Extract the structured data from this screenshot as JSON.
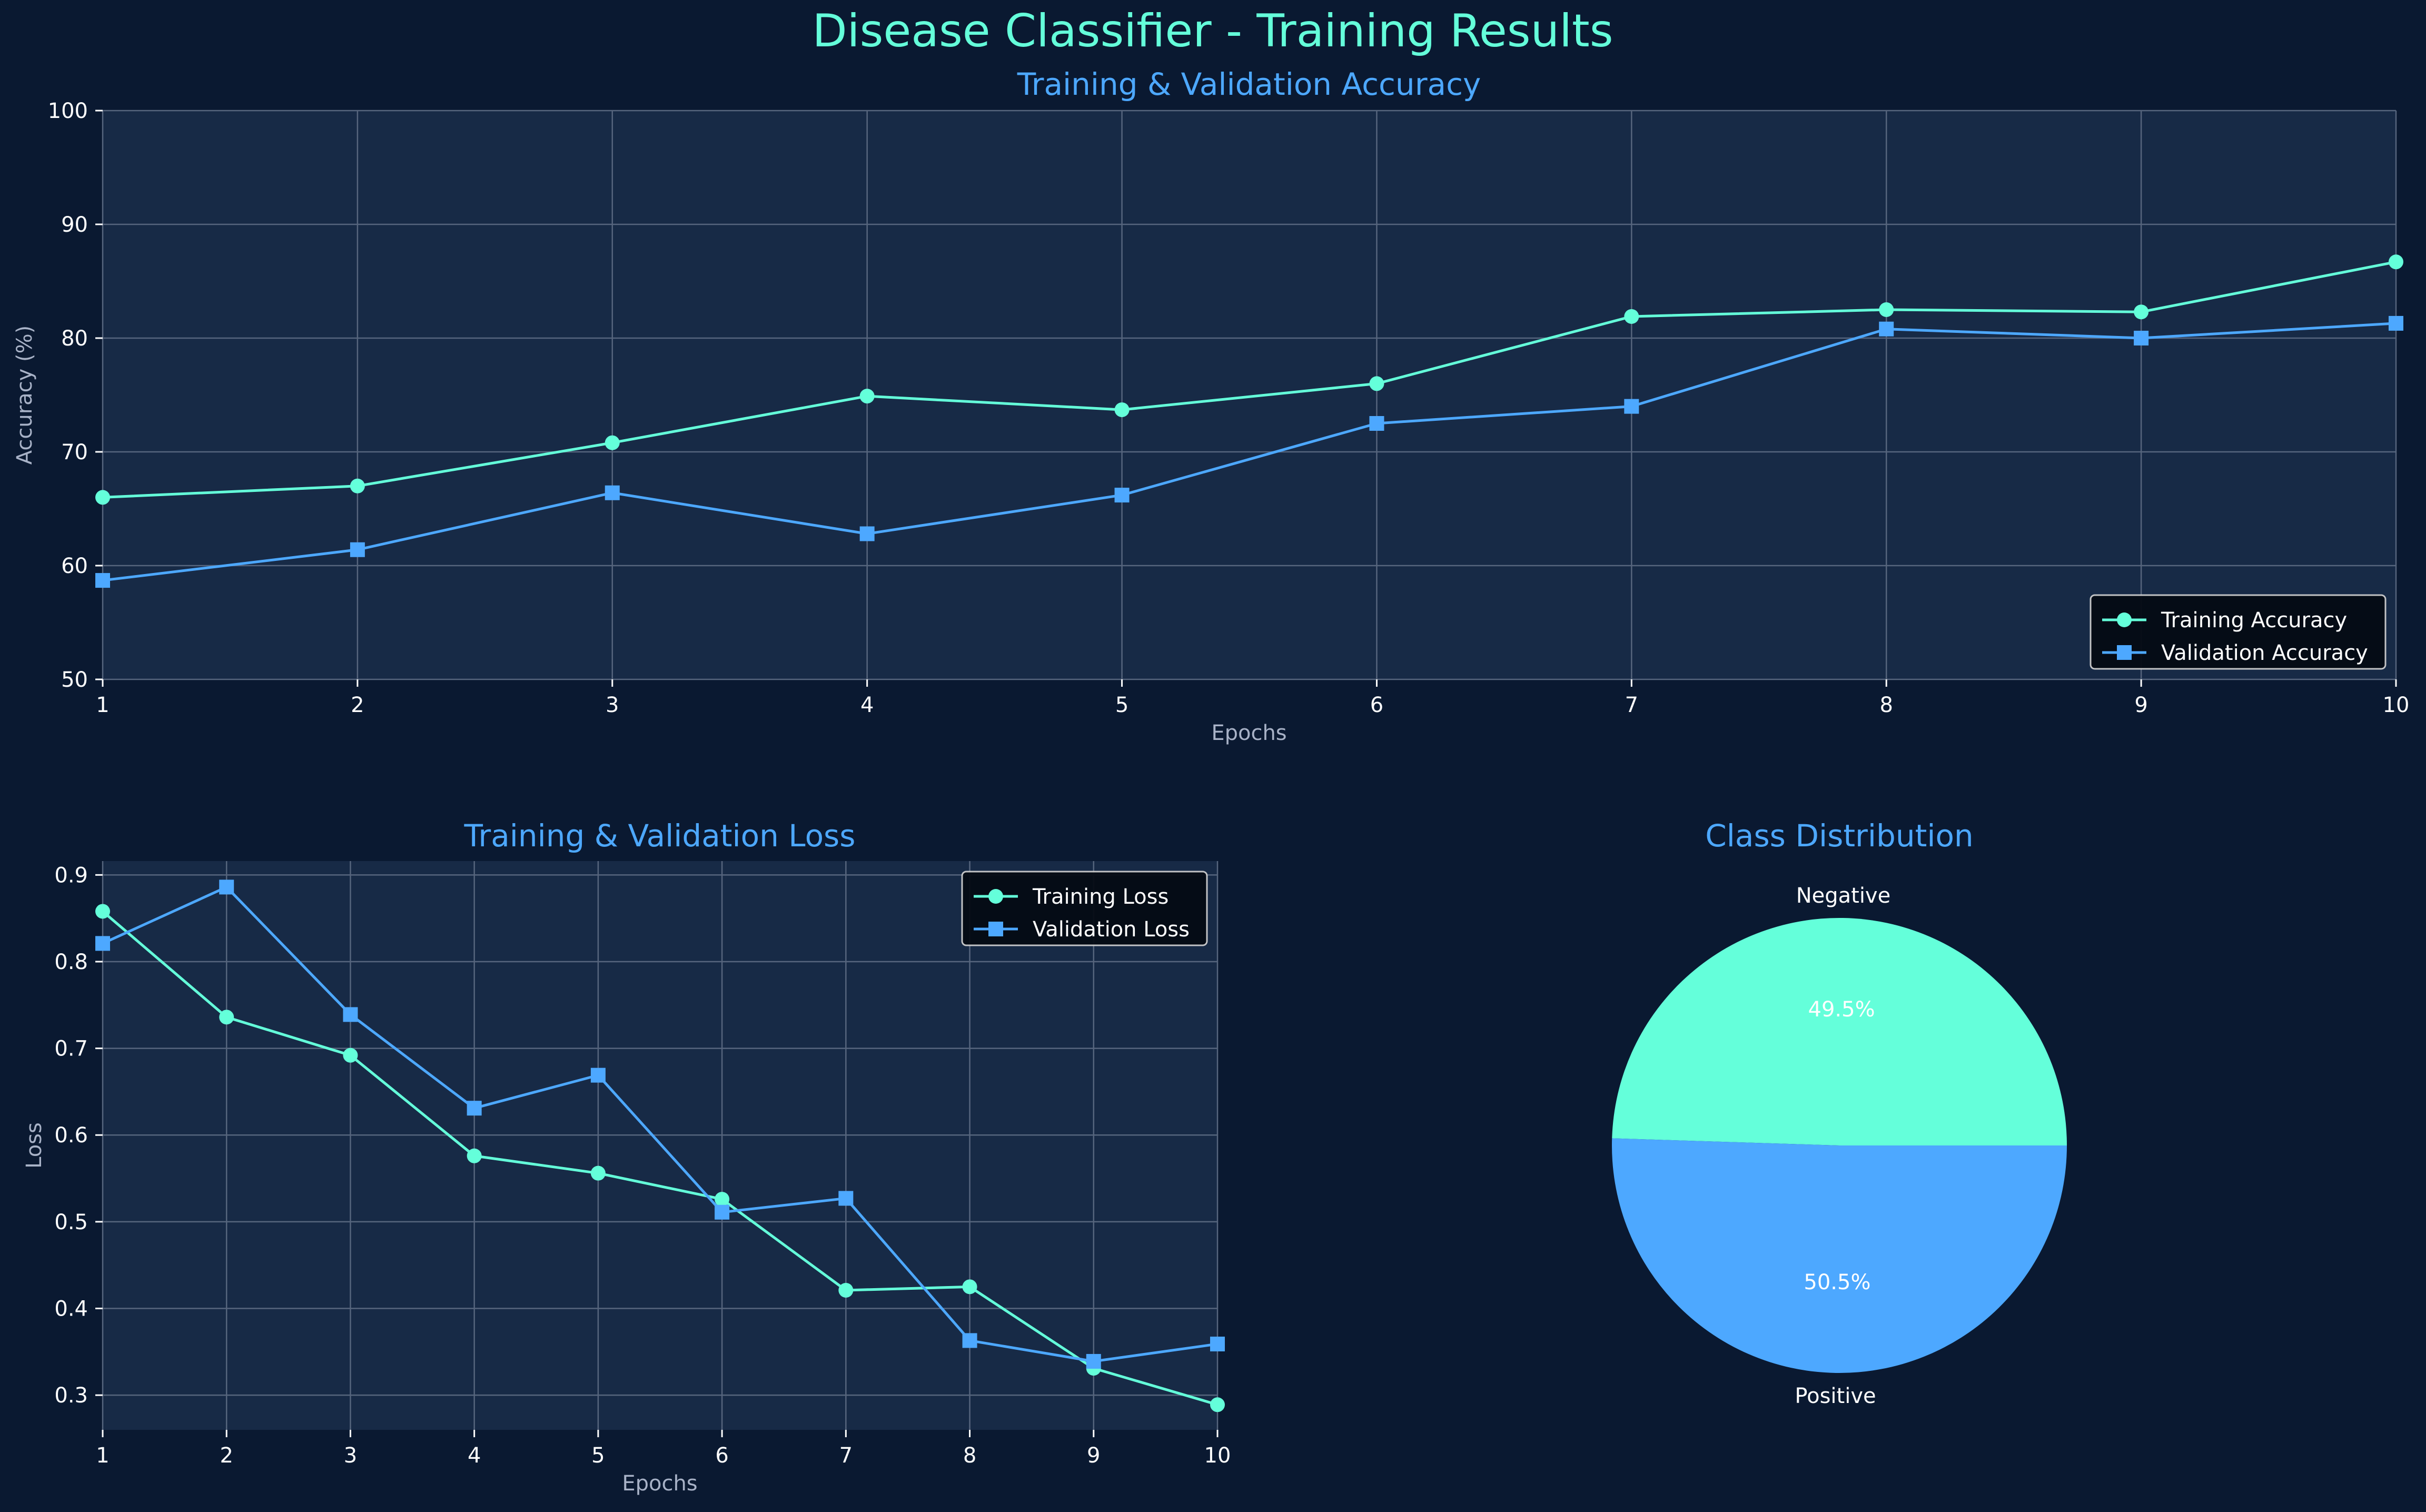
{
  "figure": {
    "title": "Disease Classifier - Training Results"
  },
  "colors": {
    "background": "#0a1931",
    "panel": "#172a46",
    "grid": "#56657d",
    "title": "#64ffda",
    "subtitle": "#4da8ff",
    "axis_label": "#a8b2c7",
    "tick_label": "#ffffff",
    "train": "#64ffda",
    "val": "#4da8ff",
    "legend_bg": "#050b14"
  },
  "chart_data": [
    {
      "id": "accuracy",
      "type": "line",
      "title": "Training & Validation Accuracy",
      "xlabel": "Epochs",
      "ylabel": "Accuracy (%)",
      "xlim": [
        1,
        10
      ],
      "ylim": [
        50,
        100
      ],
      "xticks": [
        "1",
        "2",
        "3",
        "4",
        "5",
        "6",
        "7",
        "8",
        "9",
        "10"
      ],
      "yticks": [
        "50",
        "60",
        "70",
        "80",
        "90",
        "100"
      ],
      "grid": true,
      "legend": "lower-right",
      "x": [
        1,
        2,
        3,
        4,
        5,
        6,
        7,
        8,
        9,
        10
      ],
      "series": [
        {
          "name": "Training Accuracy",
          "marker": "circle",
          "values": [
            66.0,
            67.0,
            70.8,
            74.9,
            73.7,
            76.0,
            81.9,
            82.5,
            82.3,
            86.7
          ]
        },
        {
          "name": "Validation Accuracy",
          "marker": "square",
          "values": [
            58.7,
            61.4,
            66.4,
            62.8,
            66.2,
            72.5,
            74.0,
            80.8,
            80.0,
            81.3
          ]
        }
      ]
    },
    {
      "id": "loss",
      "type": "line",
      "title": "Training & Validation Loss",
      "xlabel": "Epochs",
      "ylabel": "Loss",
      "xlim": [
        1,
        10
      ],
      "ylim": [
        0.26,
        0.916
      ],
      "xticks": [
        "1",
        "2",
        "3",
        "4",
        "5",
        "6",
        "7",
        "8",
        "9",
        "10"
      ],
      "yticks": [
        "0.3",
        "0.4",
        "0.5",
        "0.6",
        "0.7",
        "0.8",
        "0.9"
      ],
      "grid": true,
      "legend": "upper-right",
      "x": [
        1,
        2,
        3,
        4,
        5,
        6,
        7,
        8,
        9,
        10
      ],
      "series": [
        {
          "name": "Training Loss",
          "marker": "circle",
          "values": [
            0.858,
            0.736,
            0.692,
            0.576,
            0.556,
            0.526,
            0.421,
            0.425,
            0.331,
            0.289
          ]
        },
        {
          "name": "Validation Loss",
          "marker": "square",
          "values": [
            0.821,
            0.886,
            0.739,
            0.631,
            0.669,
            0.511,
            0.527,
            0.363,
            0.339,
            0.359
          ]
        }
      ]
    },
    {
      "id": "distribution",
      "type": "pie",
      "title": "Class Distribution",
      "slices": [
        {
          "label": "Negative",
          "value": 49.5,
          "pct_label": "49.5%"
        },
        {
          "label": "Positive",
          "value": 50.5,
          "pct_label": "50.5%"
        }
      ]
    }
  ]
}
